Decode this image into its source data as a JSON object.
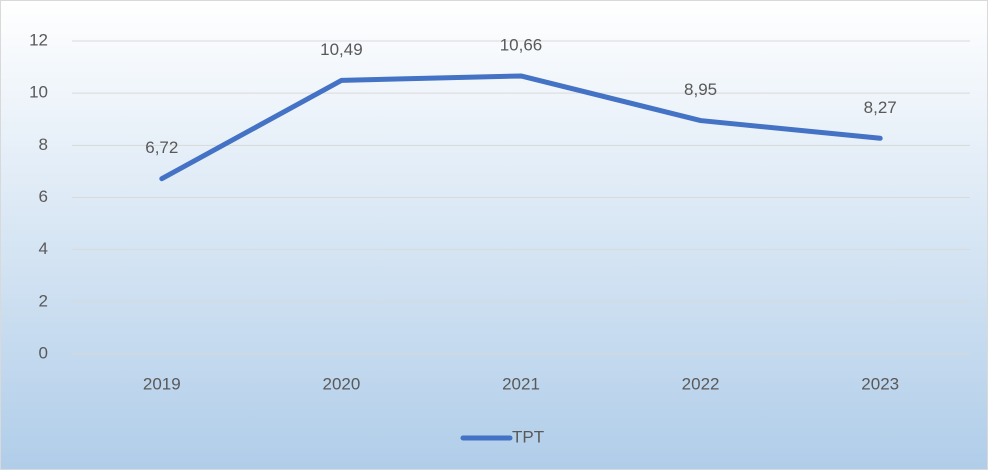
{
  "chart_data": {
    "type": "line",
    "categories": [
      "2019",
      "2020",
      "2021",
      "2022",
      "2023"
    ],
    "series": [
      {
        "name": "TPT",
        "color": "#4472c4",
        "values": [
          6.72,
          10.49,
          10.66,
          8.95,
          8.27
        ],
        "value_labels": [
          "6,72",
          "10,49",
          "10,66",
          "8,95",
          "8,27"
        ]
      }
    ],
    "ylim": [
      0,
      12
    ],
    "yticks": [
      0,
      2,
      4,
      6,
      8,
      10,
      12
    ],
    "grid": true,
    "legend": "bottom"
  }
}
